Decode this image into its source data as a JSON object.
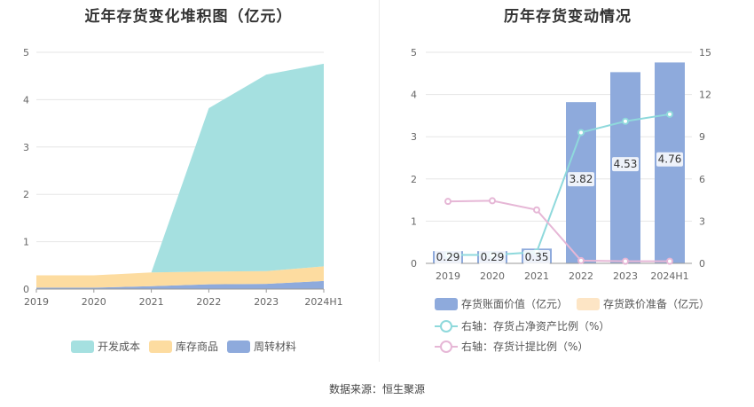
{
  "titles": {
    "left": "近年存货变化堆积图（亿元）",
    "right": "历年存货变动情况"
  },
  "source": "数据来源：恒生聚源",
  "chart_data": [
    {
      "type": "area",
      "stacked": true,
      "title": "近年存货变化堆积图（亿元）",
      "x": [
        "2019",
        "2020",
        "2021",
        "2022",
        "2023",
        "2024H1"
      ],
      "ylim": [
        0,
        5
      ],
      "yticks": [
        "0",
        "1",
        "2",
        "3",
        "4",
        "5"
      ],
      "grid": true,
      "legend_position": "bottom",
      "series": [
        {
          "name": "周转材料",
          "color": "#8eaadc",
          "values": [
            0.03,
            0.03,
            0.06,
            0.1,
            0.11,
            0.17
          ]
        },
        {
          "name": "库存商品",
          "color": "#fddca0",
          "values": [
            0.26,
            0.26,
            0.29,
            0.27,
            0.27,
            0.31
          ]
        },
        {
          "name": "开发成本",
          "color": "#a5e0e0",
          "values": [
            0.0,
            0.0,
            0.0,
            3.45,
            4.15,
            4.28
          ]
        }
      ],
      "legend_order": [
        "开发成本",
        "库存商品",
        "周转材料"
      ]
    },
    {
      "type": "bar",
      "title": "历年存货变动情况",
      "categories": [
        "2019",
        "2020",
        "2021",
        "2022",
        "2023",
        "2024H1"
      ],
      "ylim": [
        0,
        5
      ],
      "yticks": [
        "0",
        "1",
        "2",
        "3",
        "4",
        "5"
      ],
      "y2lim": [
        0,
        15
      ],
      "y2ticks": [
        "0",
        "3",
        "6",
        "9",
        "12",
        "15"
      ],
      "grid": true,
      "legend_position": "bottom",
      "series": [
        {
          "name": "存货账面价值（亿元）",
          "kind": "bar",
          "axis": "left",
          "color": "#8eaadc",
          "values": [
            0.29,
            0.29,
            0.35,
            3.82,
            4.53,
            4.76
          ],
          "labels": [
            "0.29",
            "0.29",
            "0.35",
            "3.82",
            "4.53",
            "4.76"
          ]
        },
        {
          "name": "存货跌价准备（亿元）",
          "kind": "bar",
          "axis": "left",
          "color": "#fde5c5",
          "values": [
            0,
            0,
            0,
            0,
            0,
            0
          ]
        },
        {
          "name": "右轴：存货占净资产比例（%）",
          "kind": "line",
          "axis": "right",
          "color": "#8fd9dc",
          "values": [
            0.6,
            0.6,
            0.8,
            9.3,
            10.1,
            10.6
          ]
        },
        {
          "name": "右轴：存货计提比例（%）",
          "kind": "line",
          "axis": "right",
          "color": "#e6b7d6",
          "values": [
            4.4,
            4.45,
            3.8,
            0.2,
            0.15,
            0.15
          ]
        }
      ]
    }
  ]
}
